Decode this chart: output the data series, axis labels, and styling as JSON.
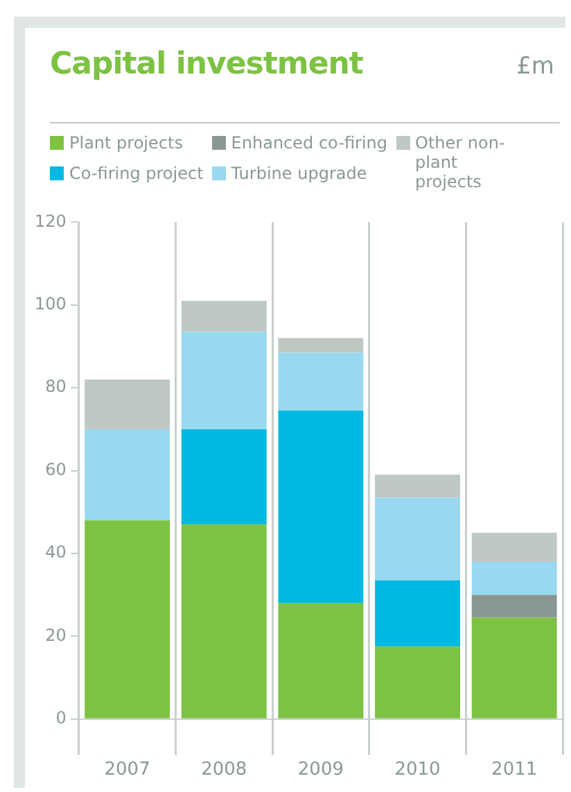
{
  "chart_data": {
    "type": "bar",
    "title": "Capital investment",
    "annotations": [
      "£m"
    ],
    "stacked": true,
    "categories": [
      "2007",
      "2008",
      "2009",
      "2010",
      "2011"
    ],
    "series": [
      {
        "name": "Plant projects",
        "color": "#7dc242",
        "values": [
          48,
          47,
          28,
          17.5,
          24.5
        ]
      },
      {
        "name": "Co-firing project",
        "color": "#00b9e2",
        "values": [
          0,
          23,
          46.5,
          16,
          0
        ]
      },
      {
        "name": "Enhanced co-firing",
        "color": "#8b9892",
        "values": [
          0,
          0,
          0,
          0,
          5.5
        ]
      },
      {
        "name": "Turbine upgrade",
        "color": "#99d9f0",
        "values": [
          22,
          23.5,
          14,
          20,
          8
        ]
      },
      {
        "name": "Other non-plant projects",
        "color": "#bfc8c3",
        "values": [
          12,
          7.5,
          3.5,
          5.5,
          7
        ]
      }
    ],
    "ylim": [
      0,
      120
    ],
    "yticks": [
      0,
      20,
      40,
      60,
      80,
      100,
      120
    ],
    "grid": "x",
    "legend": "top"
  }
}
